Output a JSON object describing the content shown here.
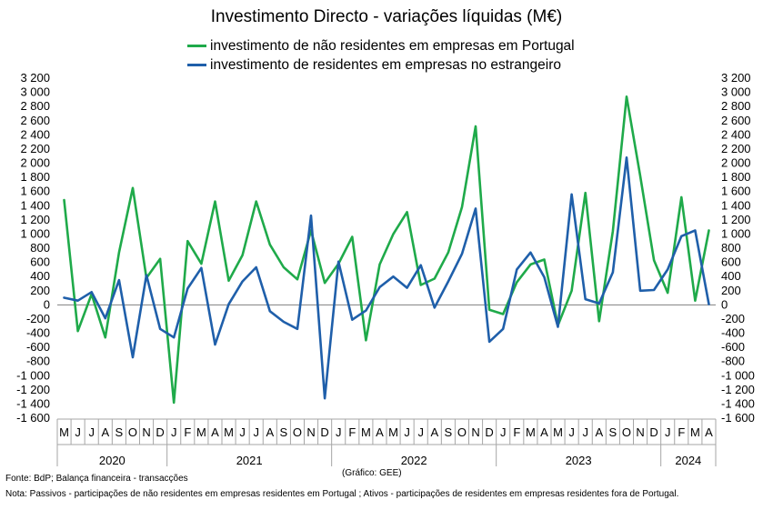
{
  "chart_data": {
    "type": "line",
    "title": "Investimento Directo - variações líquidas (M€)",
    "ylim": [
      -1600,
      3200
    ],
    "y_step": 200,
    "grid": false,
    "legend_placement": "top",
    "x_month_labels": [
      "M",
      "J",
      "J",
      "A",
      "S",
      "O",
      "N",
      "D",
      "J",
      "F",
      "M",
      "A",
      "M",
      "J",
      "J",
      "A",
      "S",
      "O",
      "N",
      "D",
      "J",
      "F",
      "M",
      "A",
      "M",
      "J",
      "J",
      "A",
      "S",
      "O",
      "N",
      "D",
      "J",
      "F",
      "M",
      "A",
      "M",
      "J",
      "J",
      "A",
      "S",
      "O",
      "N",
      "D",
      "J",
      "F",
      "M",
      "A"
    ],
    "year_groups": [
      {
        "label": "2020",
        "start": 0,
        "end": 8
      },
      {
        "label": "2021",
        "start": 8,
        "end": 20
      },
      {
        "label": "2022",
        "start": 20,
        "end": 32
      },
      {
        "label": "2023",
        "start": 32,
        "end": 44
      },
      {
        "label": "2024",
        "start": 44,
        "end": 48
      }
    ],
    "series": [
      {
        "name": "investimento de não residentes em empresas em Portugal",
        "color": "#1faa4a",
        "values": [
          1480,
          -370,
          150,
          -460,
          740,
          1650,
          380,
          650,
          -1380,
          900,
          580,
          1460,
          340,
          700,
          1460,
          850,
          530,
          360,
          1050,
          310,
          580,
          960,
          -500,
          570,
          1000,
          1310,
          280,
          370,
          740,
          1380,
          2520,
          -70,
          -130,
          320,
          570,
          640,
          -290,
          200,
          1580,
          -230,
          1040,
          2940,
          1820,
          630,
          170,
          1520,
          60,
          1050
        ]
      },
      {
        "name": "investimento de residentes em empresas no estrangeiro",
        "color": "#1f5faa",
        "values": [
          100,
          60,
          180,
          -190,
          350,
          -740,
          420,
          -340,
          -460,
          230,
          520,
          -560,
          10,
          330,
          530,
          -90,
          -240,
          -340,
          1260,
          -1320,
          610,
          -210,
          -80,
          250,
          400,
          240,
          560,
          -40,
          330,
          720,
          1360,
          -520,
          -340,
          500,
          740,
          390,
          -310,
          1560,
          80,
          20,
          460,
          2080,
          200,
          210,
          500,
          970,
          1050,
          10
        ]
      }
    ]
  },
  "footer": {
    "source": "Fonte: BdP; Balança financeira - transacções",
    "credit": "(Gráfico: GEE)",
    "note": "Nota: Passivos - participações de não residentes em empresas residentes em Portugal ; Ativos - participações de residentes em empresas residentes fora de Portugal."
  }
}
